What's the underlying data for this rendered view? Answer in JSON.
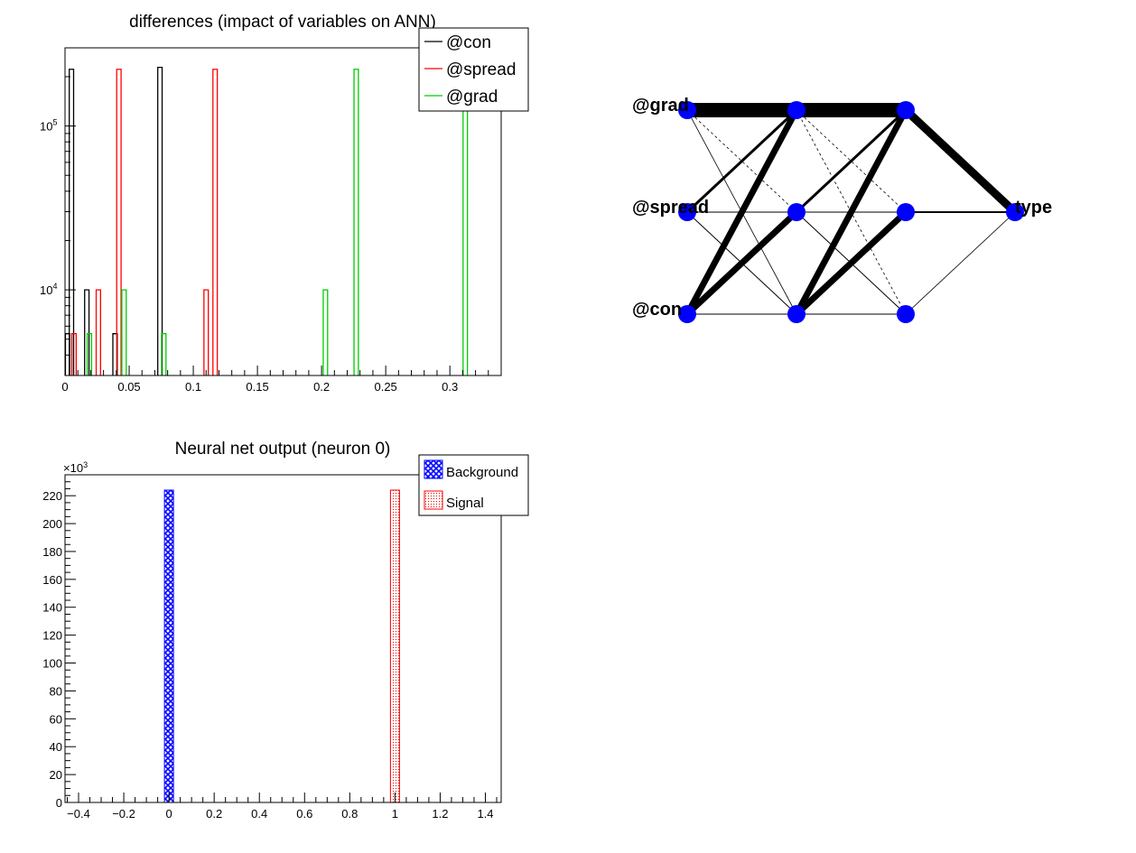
{
  "chart_data": [
    {
      "type": "bar",
      "title": "differences (impact of variables on ANN)",
      "xlabel": "",
      "ylabel": "",
      "y_scale": "log",
      "xlim": [
        0,
        0.34
      ],
      "ylim": [
        3000,
        300000
      ],
      "x_ticks": [
        0,
        0.05,
        0.1,
        0.15,
        0.2,
        0.25,
        0.3
      ],
      "x_tick_labels": [
        "0",
        "0.05",
        "0.1",
        "0.15",
        "0.2",
        "0.25",
        "0.3"
      ],
      "y_ticks": [
        10000,
        100000
      ],
      "y_tick_labels": [
        {
          "base": "10",
          "exp": "4"
        },
        {
          "base": "10",
          "exp": "5"
        }
      ],
      "grid": false,
      "legend_position": "top-right",
      "series": [
        {
          "name": "@con",
          "color": "#000000",
          "bins": [
            [
              0.002,
              5400
            ],
            [
              0.005,
              222000
            ],
            [
              0.017,
              10000
            ],
            [
              0.039,
              5400
            ],
            [
              0.074,
              228000
            ]
          ]
        },
        {
          "name": "@spread",
          "color": "#ff0000",
          "bins": [
            [
              0.007,
              5400
            ],
            [
              0.026,
              10000
            ],
            [
              0.042,
              222000
            ],
            [
              0.11,
              10000
            ],
            [
              0.117,
              222000
            ]
          ]
        },
        {
          "name": "@grad",
          "color": "#00cc00",
          "bins": [
            [
              0.019,
              5400
            ],
            [
              0.046,
              10000
            ],
            [
              0.077,
              5400
            ],
            [
              0.203,
              10000
            ],
            [
              0.227,
              222000
            ],
            [
              0.312,
              228000
            ]
          ]
        }
      ]
    },
    {
      "type": "bar",
      "title": "Neural net output (neuron 0)",
      "xlabel": "",
      "ylabel": "",
      "xlim": [
        -0.46,
        1.47
      ],
      "ylim": [
        0,
        235
      ],
      "y_multiplier": {
        "base": "×10",
        "exp": "3"
      },
      "x_ticks": [
        -0.4,
        -0.2,
        0,
        0.2,
        0.4,
        0.6,
        0.8,
        1,
        1.2,
        1.4
      ],
      "x_tick_labels": [
        "−0.4",
        "−0.2",
        "0",
        "0.2",
        "0.4",
        "0.6",
        "0.8",
        "1",
        "1.2",
        "1.4"
      ],
      "y_ticks": [
        0,
        20,
        40,
        60,
        80,
        100,
        120,
        140,
        160,
        180,
        200,
        220
      ],
      "y_tick_labels": [
        "0",
        "20",
        "40",
        "60",
        "80",
        "100",
        "120",
        "140",
        "160",
        "180",
        "200",
        "220"
      ],
      "grid": false,
      "legend_position": "top-right",
      "series": [
        {
          "name": "Background",
          "color": "#0000ff",
          "fill": "crosshatch",
          "bins": [
            [
              0,
              224
            ]
          ]
        },
        {
          "name": "Signal",
          "color": "#ff0000",
          "fill": "dots",
          "bins": [
            [
              1,
              224
            ]
          ]
        }
      ]
    }
  ],
  "network": {
    "input_labels": [
      "@grad",
      "@spread",
      "@con"
    ],
    "output_label": "type",
    "node_color": "#0000ff",
    "layer_sizes": [
      3,
      3,
      3,
      1
    ]
  }
}
